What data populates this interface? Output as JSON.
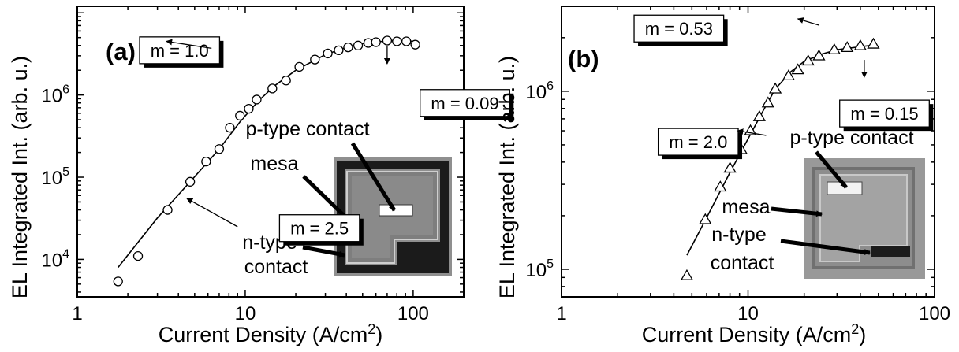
{
  "chart_data": [
    {
      "type": "scatter",
      "panel_label": "(a)",
      "xlabel": "Current Density (A/cm",
      "xlabel_sup": "2",
      "xlabel_tail": ")",
      "ylabel": "EL Integrated Int. (arb. u.)",
      "xscale": "log",
      "yscale": "log",
      "xlim": [
        1,
        200
      ],
      "ylim": [
        3500,
        12000000
      ],
      "xticks": [
        {
          "v": 1,
          "label": "1"
        },
        {
          "v": 10,
          "label": "10"
        },
        {
          "v": 100,
          "label": "100"
        }
      ],
      "yticks": [
        {
          "v": 10000,
          "base": "10",
          "exp": "4"
        },
        {
          "v": 100000,
          "base": "10",
          "exp": "5"
        },
        {
          "v": 1000000,
          "base": "10",
          "exp": "6"
        }
      ],
      "marker": "circle",
      "points": [
        [
          1.75,
          5400
        ],
        [
          2.3,
          11000
        ],
        [
          3.45,
          40000
        ],
        [
          4.7,
          88000
        ],
        [
          5.85,
          155000
        ],
        [
          7.0,
          220000
        ],
        [
          8.1,
          400000
        ],
        [
          9.3,
          560000
        ],
        [
          10.5,
          680000
        ],
        [
          11.7,
          880000
        ],
        [
          14.5,
          1200000
        ],
        [
          17.5,
          1500000
        ],
        [
          21.0,
          2200000
        ],
        [
          26.0,
          2700000
        ],
        [
          31.0,
          3200000
        ],
        [
          36.0,
          3500000
        ],
        [
          41.0,
          3800000
        ],
        [
          47.0,
          4000000
        ],
        [
          54.0,
          4300000
        ],
        [
          60.0,
          4400000
        ],
        [
          70.0,
          4600000
        ],
        [
          80.0,
          4500000
        ],
        [
          91.0,
          4500000
        ],
        [
          103.0,
          4100000
        ]
      ],
      "fit": [
        [
          1.75,
          8000
        ],
        [
          3.0,
          32000
        ],
        [
          4.7,
          88000
        ],
        [
          7.0,
          220000
        ],
        [
          9.3,
          470000
        ],
        [
          12.0,
          850000
        ],
        [
          15.0,
          1300000
        ],
        [
          20.0,
          2000000
        ],
        [
          30.0,
          3100000
        ],
        [
          40.0,
          3800000
        ],
        [
          50.0,
          4200000
        ],
        [
          60.0,
          4450000
        ],
        [
          80.0,
          4600000
        ],
        [
          104.0,
          4500000
        ]
      ],
      "annotations": [
        {
          "text": "m = 1.0",
          "box_at": [
            2.35,
            3500000
          ],
          "arrow_from": [
            6.3,
            3700000
          ],
          "arrow_to": [
            3.4,
            4500000
          ]
        },
        {
          "text": "m = 0.09",
          "box_at": [
            110,
            800000
          ],
          "arrow_from": [
            70,
            3900000
          ],
          "arrow_to": [
            70,
            2400000
          ]
        },
        {
          "text": "m = 2.5",
          "box_at": [
            16,
            24000
          ],
          "arrow_from": [
            9.0,
            25000
          ],
          "arrow_to": [
            4.5,
            55000
          ]
        }
      ],
      "inset_labels": {
        "p_contact": "p-type contact",
        "mesa": "mesa",
        "n_line1": "n-type",
        "n_line2": "contact"
      }
    },
    {
      "type": "scatter",
      "panel_label": "(b)",
      "xlabel": "Current Density (A/cm",
      "xlabel_sup": "2",
      "xlabel_tail": ")",
      "ylabel": "EL Integrated Int. (arb. u.)",
      "xscale": "log",
      "yscale": "log",
      "xlim": [
        1,
        100
      ],
      "ylim": [
        70000,
        3000000
      ],
      "xticks": [
        {
          "v": 1,
          "label": "1"
        },
        {
          "v": 10,
          "label": "10"
        },
        {
          "v": 100,
          "label": "100"
        }
      ],
      "yticks": [
        {
          "v": 100000,
          "base": "10",
          "exp": "5"
        },
        {
          "v": 1000000,
          "base": "10",
          "exp": "6"
        }
      ],
      "marker": "triangle",
      "points": [
        [
          4.7,
          92000
        ],
        [
          5.9,
          190000
        ],
        [
          7.1,
          290000
        ],
        [
          8.0,
          370000
        ],
        [
          9.2,
          470000
        ],
        [
          10.3,
          600000
        ],
        [
          11.5,
          720000
        ],
        [
          12.8,
          860000
        ],
        [
          14.0,
          1030000
        ],
        [
          16.5,
          1220000
        ],
        [
          18.5,
          1320000
        ],
        [
          21.0,
          1480000
        ],
        [
          24.0,
          1580000
        ],
        [
          29.0,
          1710000
        ],
        [
          34.0,
          1760000
        ],
        [
          40.0,
          1800000
        ],
        [
          47.0,
          1840000
        ]
      ],
      "fit": [
        [
          4.7,
          120000
        ],
        [
          6.0,
          195000
        ],
        [
          8.0,
          350000
        ],
        [
          10.0,
          540000
        ],
        [
          12.0,
          770000
        ],
        [
          14.0,
          1030000
        ],
        [
          17.0,
          1290000
        ],
        [
          20.0,
          1470000
        ],
        [
          25.0,
          1620000
        ],
        [
          30.0,
          1710000
        ],
        [
          40.0,
          1780000
        ],
        [
          48.0,
          1820000
        ]
      ],
      "annotations": [
        {
          "text": "m = 0.53",
          "box_at": [
            2.45,
            2250000
          ],
          "arrow_from": [
            24.0,
            2350000
          ],
          "arrow_to": [
            18.5,
            2550000
          ]
        },
        {
          "text": "m = 0.15",
          "box_at": [
            31.0,
            750000
          ],
          "arrow_from": [
            42.0,
            1500000
          ],
          "arrow_to": [
            42.0,
            1200000
          ]
        },
        {
          "text": "m = 2.0",
          "box_at": [
            3.3,
            520000
          ],
          "arrow_from": [
            12.5,
            565000
          ],
          "arrow_to": [
            8.8,
            600000
          ]
        }
      ],
      "inset_labels": {
        "p_contact": "p-type contact",
        "mesa": "mesa",
        "n_line1": "n-type",
        "n_line2": "contact"
      }
    }
  ]
}
